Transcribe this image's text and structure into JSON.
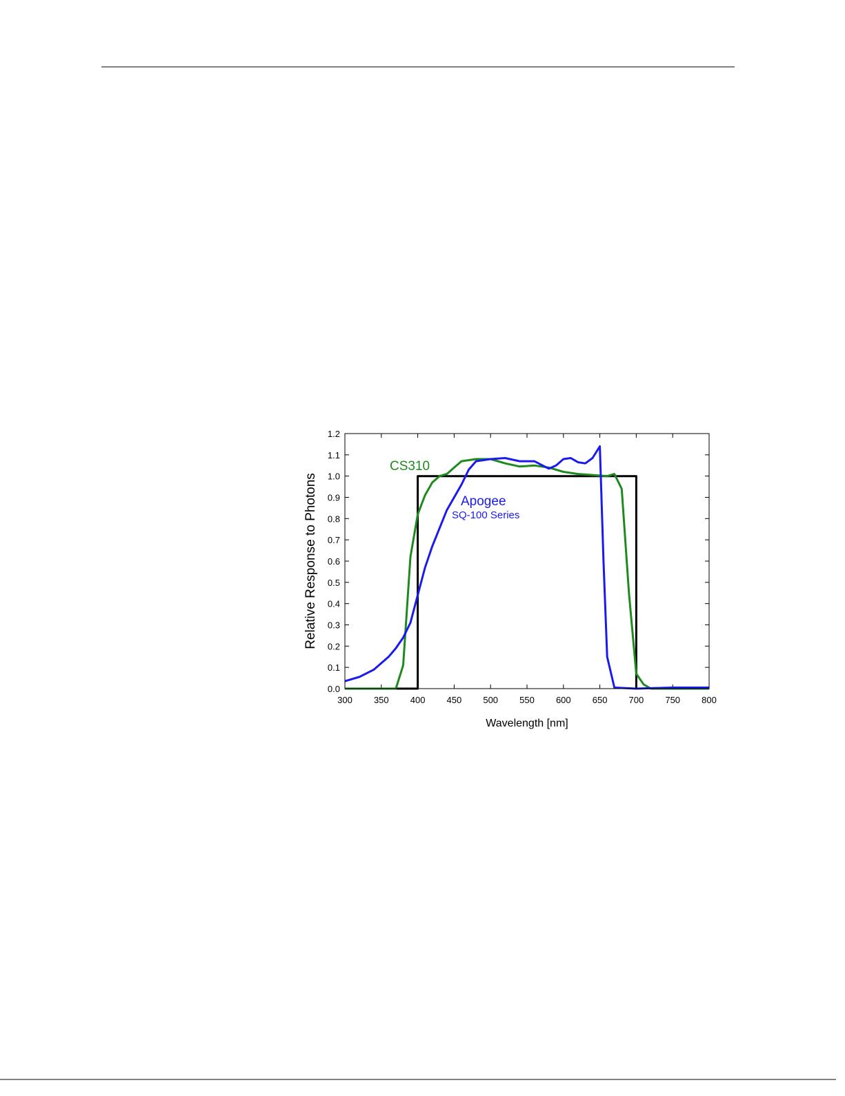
{
  "chart_data": {
    "type": "line",
    "xlabel": "Wavelength [nm]",
    "ylabel": "Relative Response to Photons",
    "xlim": [
      300,
      800
    ],
    "ylim": [
      0,
      1.2
    ],
    "xticks": [
      300,
      350,
      400,
      450,
      500,
      550,
      600,
      650,
      700,
      750,
      800
    ],
    "yticks": [
      {
        "value": 0,
        "label": "0.0"
      },
      {
        "value": 0.1,
        "label": "0.1"
      },
      {
        "value": 0.2,
        "label": "0.2"
      },
      {
        "value": 0.3,
        "label": "0.3"
      },
      {
        "value": 0.4,
        "label": "0.4"
      },
      {
        "value": 0.5,
        "label": "0.5"
      },
      {
        "value": 0.6,
        "label": "0.6"
      },
      {
        "value": 0.7,
        "label": "0.7"
      },
      {
        "value": 0.8,
        "label": "0.8"
      },
      {
        "value": 0.9,
        "label": "0.9"
      },
      {
        "value": 1,
        "label": "1.0"
      },
      {
        "value": 1.1,
        "label": "1.1"
      },
      {
        "value": 1.2,
        "label": "1.2"
      }
    ],
    "series": [
      {
        "color": "#000000",
        "x": [
          370,
          400,
          400,
          700,
          700
        ],
        "values": [
          0,
          0,
          1,
          1,
          0
        ]
      },
      {
        "name": "CS310",
        "color": "#1e8a1e",
        "x": [
          300,
          370,
          380,
          390,
          400,
          410,
          420,
          430,
          440,
          450,
          460,
          480,
          500,
          520,
          540,
          560,
          580,
          600,
          620,
          640,
          660,
          670,
          680,
          690,
          700,
          710,
          720,
          800
        ],
        "values": [
          0,
          0,
          0.11,
          0.62,
          0.82,
          0.91,
          0.97,
          1.0,
          1.01,
          1.04,
          1.07,
          1.08,
          1.08,
          1.06,
          1.045,
          1.05,
          1.04,
          1.02,
          1.01,
          1.005,
          1.0,
          1.01,
          0.94,
          0.45,
          0.07,
          0.02,
          0,
          0
        ]
      },
      {
        "name": "Apogee",
        "color": "#1a1aee",
        "x": [
          300,
          320,
          340,
          360,
          370,
          380,
          390,
          400,
          410,
          420,
          440,
          460,
          470,
          480,
          500,
          520,
          540,
          560,
          580,
          590,
          600,
          610,
          620,
          630,
          640,
          650,
          655,
          660,
          670,
          700,
          750,
          800
        ],
        "values": [
          0.035,
          0.055,
          0.09,
          0.15,
          0.19,
          0.24,
          0.31,
          0.44,
          0.57,
          0.67,
          0.84,
          0.96,
          1.03,
          1.07,
          1.08,
          1.085,
          1.07,
          1.07,
          1.035,
          1.05,
          1.08,
          1.085,
          1.065,
          1.06,
          1.085,
          1.14,
          0.6,
          0.15,
          0.005,
          0,
          0.005,
          0.005
        ]
      }
    ],
    "annotations": [
      {
        "text": "SQ-100 Series",
        "color": "#1a1aee"
      }
    ]
  }
}
